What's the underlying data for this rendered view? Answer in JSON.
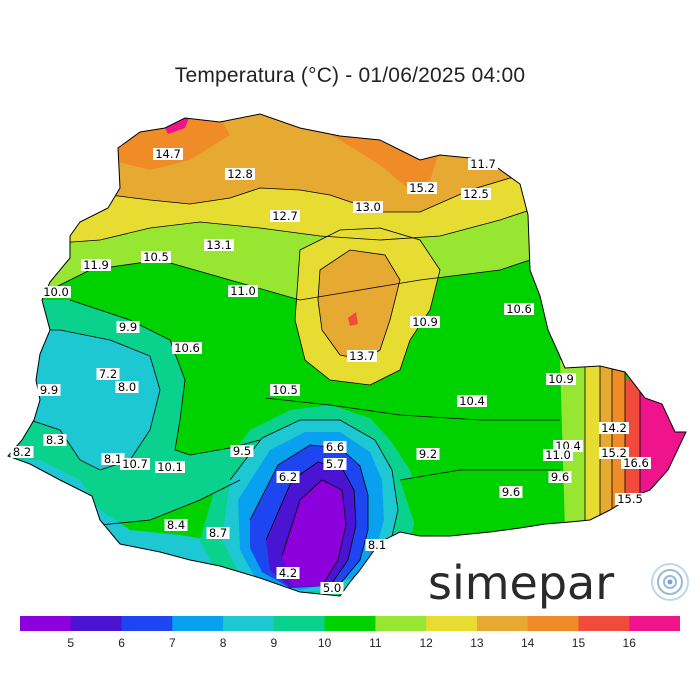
{
  "title": "Temperatura (°C) - 01/06/2025 04:00",
  "logo": {
    "text": "simepar",
    "icon": "signal-rings-icon"
  },
  "labels": [
    {
      "text": "14.7"
    },
    {
      "text": "12.8"
    },
    {
      "text": "12.7"
    },
    {
      "text": "13.0"
    },
    {
      "text": "15.2"
    },
    {
      "text": "11.7"
    },
    {
      "text": "12.5"
    },
    {
      "text": "13.1"
    },
    {
      "text": "10.5"
    },
    {
      "text": "11.9"
    },
    {
      "text": "10.0"
    },
    {
      "text": "11.0"
    },
    {
      "text": "10.9"
    },
    {
      "text": "10.6"
    },
    {
      "text": "9.9"
    },
    {
      "text": "10.6"
    },
    {
      "text": "13.7"
    },
    {
      "text": "7.2"
    },
    {
      "text": "8.0"
    },
    {
      "text": "9.9"
    },
    {
      "text": "10.5"
    },
    {
      "text": "10.4"
    },
    {
      "text": "10.9"
    },
    {
      "text": "8.3"
    },
    {
      "text": "6.6"
    },
    {
      "text": "5.7"
    },
    {
      "text": "9.2"
    },
    {
      "text": "9.5"
    },
    {
      "text": "8.2"
    },
    {
      "text": "8.1"
    },
    {
      "text": "10.7"
    },
    {
      "text": "10.1"
    },
    {
      "text": "6.2"
    },
    {
      "text": "10.4"
    },
    {
      "text": "11.0"
    },
    {
      "text": "14.2"
    },
    {
      "text": "15.2"
    },
    {
      "text": "16.6"
    },
    {
      "text": "9.6"
    },
    {
      "text": "9.6"
    },
    {
      "text": "15.5"
    },
    {
      "text": "8.4"
    },
    {
      "text": "8.7"
    },
    {
      "text": "8.1"
    },
    {
      "text": "4.2"
    },
    {
      "text": "5.0"
    }
  ],
  "legend": {
    "colors": [
      "#8c00dc",
      "#4b14d2",
      "#1e46f0",
      "#0aa0f0",
      "#1ec8d2",
      "#0ad28c",
      "#00d200",
      "#96e632",
      "#e6dc32",
      "#e6aa32",
      "#f08c28",
      "#f04b3c",
      "#f0148c"
    ],
    "ticks": [
      "5",
      "6",
      "7",
      "8",
      "9",
      "10",
      "11",
      "12",
      "13",
      "14",
      "15",
      "16"
    ]
  }
}
